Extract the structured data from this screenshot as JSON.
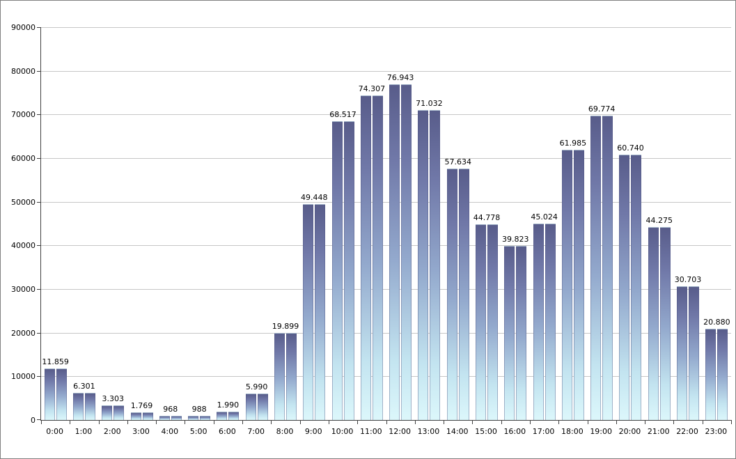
{
  "chart_data": {
    "type": "bar",
    "categories": [
      "0:00",
      "1:00",
      "2:00",
      "3:00",
      "4:00",
      "5:00",
      "6:00",
      "7:00",
      "8:00",
      "9:00",
      "10:00",
      "11:00",
      "12:00",
      "13:00",
      "14:00",
      "15:00",
      "16:00",
      "17:00",
      "18:00",
      "19:00",
      "20:00",
      "21:00",
      "22:00",
      "23:00"
    ],
    "values": [
      11859,
      6301,
      3303,
      1769,
      968,
      988,
      1990,
      5990,
      19899,
      49448,
      68517,
      74307,
      76943,
      71032,
      57634,
      44778,
      39823,
      45024,
      61985,
      69774,
      60740,
      44275,
      30703,
      20880
    ],
    "bar_labels": [
      "11.859",
      "6.301",
      "3.303",
      "1.769",
      "968",
      "988",
      "1.990",
      "5.990",
      "19.899",
      "49.448",
      "68.517",
      "74.307",
      "76.943",
      "71.032",
      "57.634",
      "44.778",
      "39.823",
      "45.024",
      "61.985",
      "69.774",
      "60.740",
      "44.275",
      "30.703",
      "20.880"
    ],
    "y_tick_labels": [
      "0",
      "10000",
      "20000",
      "30000",
      "40000",
      "50000",
      "60000",
      "70000",
      "80000",
      "90000"
    ],
    "ylim": [
      0,
      90000
    ],
    "ytick_step": 10000,
    "bars_per_category": 2,
    "grid": true,
    "legend": "none",
    "title": "",
    "xlabel": "",
    "ylabel": "",
    "colors": {
      "bar_gradient_top": "#585c8a",
      "bar_gradient_bottom": "#dcf7fb",
      "gridline": "#c6c6c6",
      "axis": "#404040",
      "background": "#ffffff",
      "frame_border": "#7f7f7f",
      "label_text": "#000000"
    }
  }
}
